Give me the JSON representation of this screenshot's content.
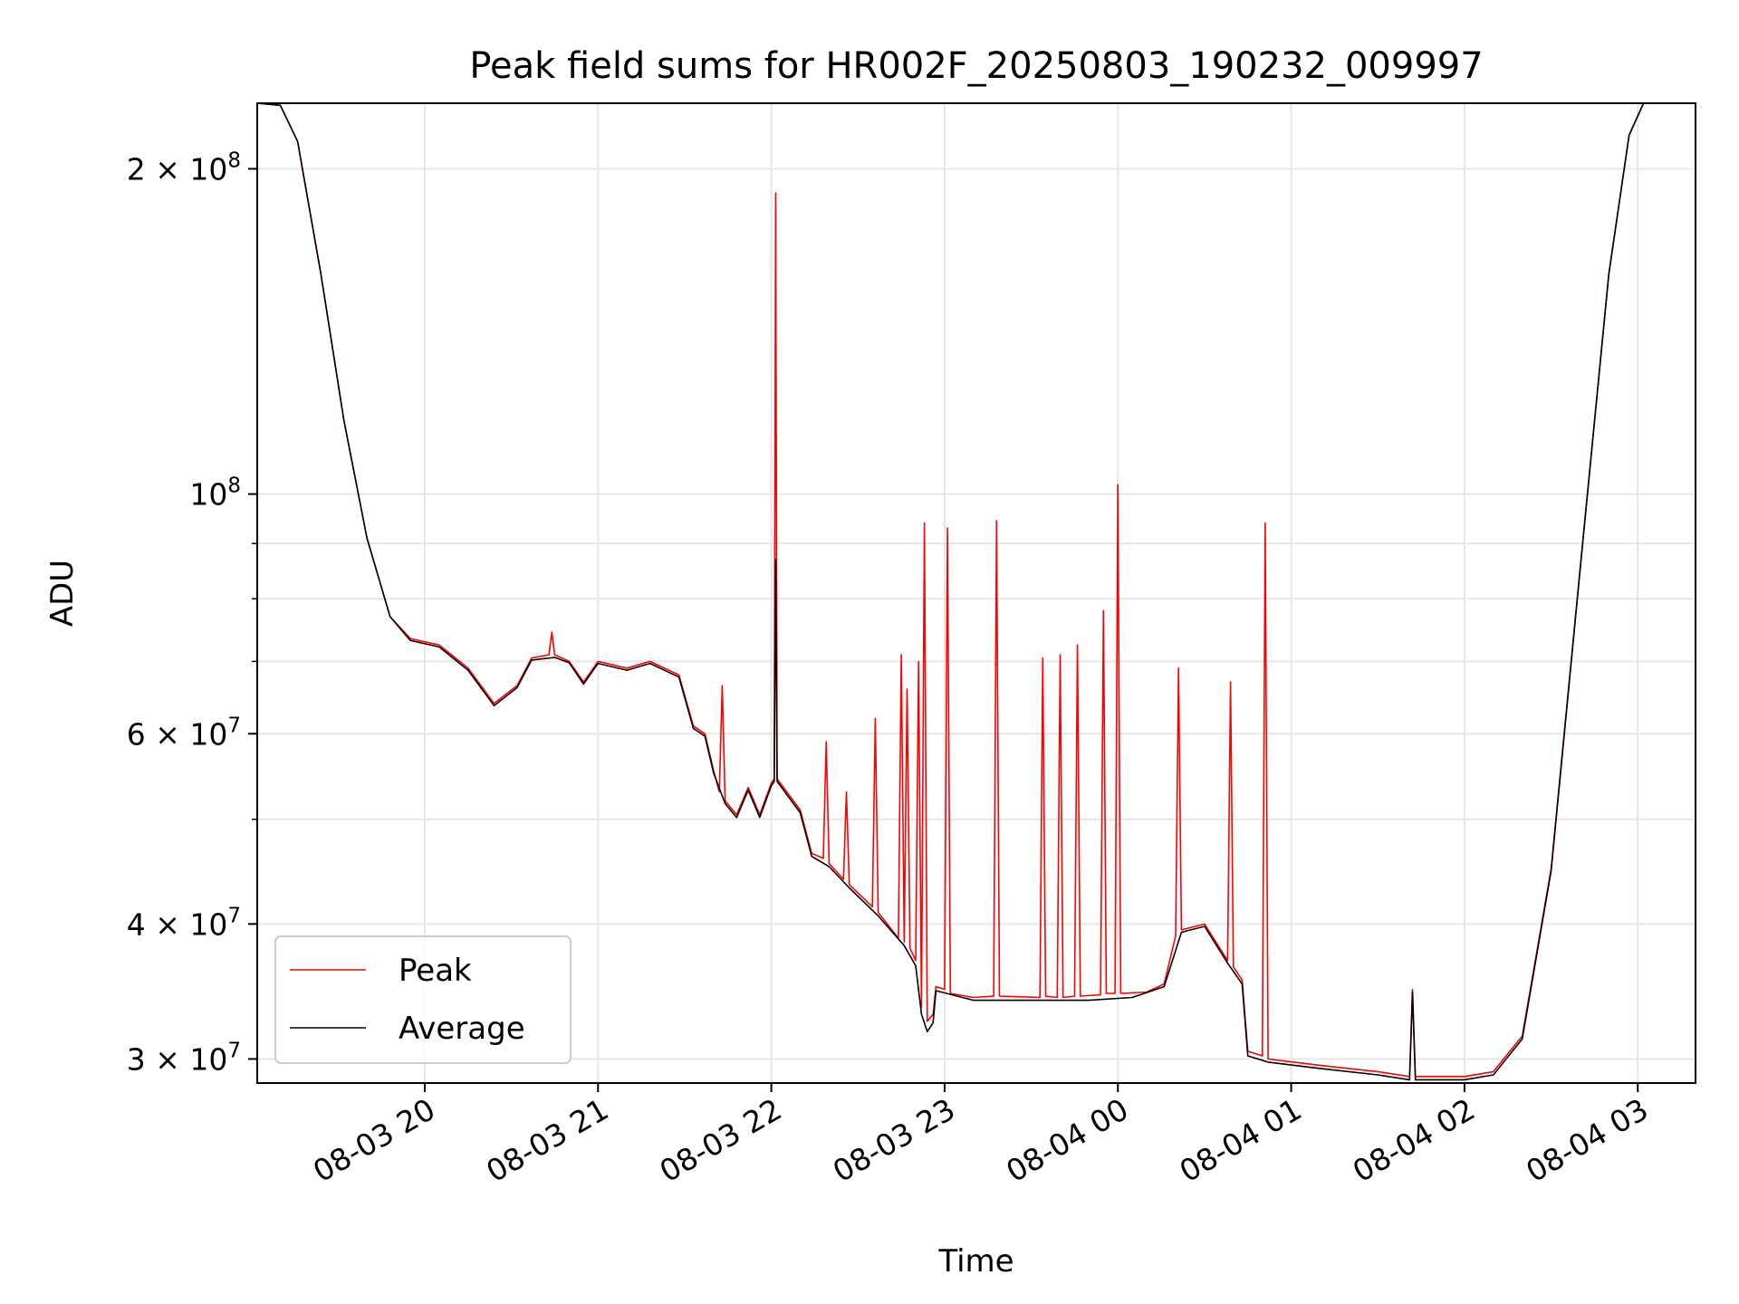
{
  "chart_data": {
    "type": "line",
    "title": "Peak field sums for HR002F_20250803_190232_009997",
    "xlabel": "Time",
    "ylabel": "ADU",
    "xscale": "time",
    "yscale": "log",
    "xlim": [
      "2025-08-03 19:02",
      "2025-08-04 03:20"
    ],
    "ylim": [
      28500000,
      230000000
    ],
    "grid": true,
    "legend_position": "lower-left",
    "x_ticks": [
      {
        "value": "2025-08-03 20:00",
        "label": "08-03 20"
      },
      {
        "value": "2025-08-03 21:00",
        "label": "08-03 21"
      },
      {
        "value": "2025-08-03 22:00",
        "label": "08-03 22"
      },
      {
        "value": "2025-08-03 23:00",
        "label": "08-03 23"
      },
      {
        "value": "2025-08-04 00:00",
        "label": "08-04 00"
      },
      {
        "value": "2025-08-04 01:00",
        "label": "08-04 01"
      },
      {
        "value": "2025-08-04 02:00",
        "label": "08-04 02"
      },
      {
        "value": "2025-08-04 03:00",
        "label": "08-04 03"
      }
    ],
    "y_ticks": [
      {
        "value": 30000000,
        "mantissa": "3",
        "exponent": "7"
      },
      {
        "value": 40000000,
        "mantissa": "4",
        "exponent": "7"
      },
      {
        "value": 60000000,
        "mantissa": "6",
        "exponent": "7"
      },
      {
        "value": 100000000,
        "mantissa": "",
        "exponent": "8"
      },
      {
        "value": 200000000,
        "mantissa": "2",
        "exponent": "8"
      }
    ],
    "y_minor_ticks": [
      50000000,
      70000000,
      80000000,
      90000000
    ],
    "series": [
      {
        "name": "Peak",
        "color": "#ff0000",
        "points": [
          [
            "2025-08-03 19:02",
            230000000
          ],
          [
            "2025-08-03 19:10",
            229000000
          ],
          [
            "2025-08-03 19:16",
            212000000
          ],
          [
            "2025-08-03 19:24",
            160000000
          ],
          [
            "2025-08-03 19:32",
            117000000
          ],
          [
            "2025-08-03 19:40",
            91000000
          ],
          [
            "2025-08-03 19:48",
            77000000
          ],
          [
            "2025-08-03 19:55",
            73500000
          ],
          [
            "2025-08-03 20:05",
            72500000
          ],
          [
            "2025-08-03 20:15",
            69000000
          ],
          [
            "2025-08-03 20:24",
            64000000
          ],
          [
            "2025-08-03 20:32",
            66500000
          ],
          [
            "2025-08-03 20:37",
            70500000
          ],
          [
            "2025-08-03 20:43",
            71000000
          ],
          [
            "2025-08-03 20:44",
            74500000
          ],
          [
            "2025-08-03 20:45",
            71000000
          ],
          [
            "2025-08-03 20:50",
            70000000
          ],
          [
            "2025-08-03 20:55",
            67000000
          ],
          [
            "2025-08-03 21:00",
            70000000
          ],
          [
            "2025-08-03 21:10",
            69000000
          ],
          [
            "2025-08-03 21:18",
            70000000
          ],
          [
            "2025-08-03 21:28",
            68000000
          ],
          [
            "2025-08-03 21:33",
            61000000
          ],
          [
            "2025-08-03 21:37",
            60000000
          ],
          [
            "2025-08-03 21:40",
            55500000
          ],
          [
            "2025-08-03 21:42",
            53000000
          ],
          [
            "2025-08-03 21:43",
            66500000
          ],
          [
            "2025-08-03 21:44",
            52000000
          ],
          [
            "2025-08-03 21:48",
            50500000
          ],
          [
            "2025-08-03 21:52",
            53500000
          ],
          [
            "2025-08-03 21:56",
            50500000
          ],
          [
            "2025-08-03 22:00",
            54000000
          ],
          [
            "2025-08-03 22:01",
            54500000
          ],
          [
            "2025-08-03 22:01:30",
            190000000
          ],
          [
            "2025-08-03 22:02",
            54500000
          ],
          [
            "2025-08-03 22:10",
            51000000
          ],
          [
            "2025-08-03 22:14",
            46500000
          ],
          [
            "2025-08-03 22:18",
            46000000
          ],
          [
            "2025-08-03 22:19",
            59000000
          ],
          [
            "2025-08-03 22:20",
            45500000
          ],
          [
            "2025-08-03 22:25",
            44000000
          ],
          [
            "2025-08-03 22:26",
            53000000
          ],
          [
            "2025-08-03 22:27",
            43500000
          ],
          [
            "2025-08-03 22:35",
            41500000
          ],
          [
            "2025-08-03 22:36",
            62000000
          ],
          [
            "2025-08-03 22:37",
            41000000
          ],
          [
            "2025-08-03 22:44",
            38800000
          ],
          [
            "2025-08-03 22:45",
            71000000
          ],
          [
            "2025-08-03 22:46",
            38500000
          ],
          [
            "2025-08-03 22:47",
            66000000
          ],
          [
            "2025-08-03 22:48",
            38000000
          ],
          [
            "2025-08-03 22:50",
            37000000
          ],
          [
            "2025-08-03 22:51",
            70000000
          ],
          [
            "2025-08-03 22:52",
            33500000
          ],
          [
            "2025-08-03 22:53",
            94000000
          ],
          [
            "2025-08-03 22:54",
            32500000
          ],
          [
            "2025-08-03 22:56",
            33000000
          ],
          [
            "2025-08-03 22:57",
            35000000
          ],
          [
            "2025-08-03 23:00",
            34800000
          ],
          [
            "2025-08-03 23:01",
            93000000
          ],
          [
            "2025-08-03 23:02",
            34500000
          ],
          [
            "2025-08-03 23:10",
            34200000
          ],
          [
            "2025-08-03 23:17",
            34300000
          ],
          [
            "2025-08-03 23:18",
            94500000
          ],
          [
            "2025-08-03 23:19",
            34300000
          ],
          [
            "2025-08-03 23:33",
            34200000
          ],
          [
            "2025-08-03 23:34",
            70500000
          ],
          [
            "2025-08-03 23:35",
            34300000
          ],
          [
            "2025-08-03 23:39",
            34200000
          ],
          [
            "2025-08-03 23:40",
            71000000
          ],
          [
            "2025-08-03 23:41",
            34200000
          ],
          [
            "2025-08-03 23:45",
            34300000
          ],
          [
            "2025-08-03 23:46",
            72500000
          ],
          [
            "2025-08-03 23:47",
            34300000
          ],
          [
            "2025-08-03 23:54",
            34400000
          ],
          [
            "2025-08-03 23:55",
            78000000
          ],
          [
            "2025-08-03 23:56",
            34500000
          ],
          [
            "2025-08-03 23:59",
            34500000
          ],
          [
            "2025-08-04 00:00",
            102000000
          ],
          [
            "2025-08-04 00:01",
            34500000
          ],
          [
            "2025-08-04 00:10",
            34600000
          ],
          [
            "2025-08-04 00:16",
            35200000
          ],
          [
            "2025-08-04 00:20",
            39000000
          ],
          [
            "2025-08-04 00:21",
            69000000
          ],
          [
            "2025-08-04 00:22",
            39500000
          ],
          [
            "2025-08-04 00:30",
            40000000
          ],
          [
            "2025-08-04 00:38",
            37000000
          ],
          [
            "2025-08-04 00:39",
            67000000
          ],
          [
            "2025-08-04 00:40",
            36500000
          ],
          [
            "2025-08-04 00:43",
            35500000
          ],
          [
            "2025-08-04 00:45",
            30500000
          ],
          [
            "2025-08-04 00:50",
            30200000
          ],
          [
            "2025-08-04 00:51",
            94000000
          ],
          [
            "2025-08-04 00:52",
            30000000
          ],
          [
            "2025-08-04 01:10",
            29600000
          ],
          [
            "2025-08-04 01:30",
            29200000
          ],
          [
            "2025-08-04 01:41",
            28900000
          ],
          [
            "2025-08-04 01:42",
            34800000
          ],
          [
            "2025-08-04 01:43",
            28900000
          ],
          [
            "2025-08-04 02:00",
            28900000
          ],
          [
            "2025-08-04 02:10",
            29200000
          ],
          [
            "2025-08-04 02:20",
            31500000
          ],
          [
            "2025-08-04 02:30",
            45000000
          ],
          [
            "2025-08-04 02:40",
            85000000
          ],
          [
            "2025-08-04 02:50",
            160000000
          ],
          [
            "2025-08-04 02:57",
            215000000
          ],
          [
            "2025-08-04 03:02",
            230000000
          ],
          [
            "2025-08-04 03:20",
            230000000
          ]
        ]
      },
      {
        "name": "Average",
        "color": "#000000",
        "points": [
          [
            "2025-08-03 19:02",
            230000000
          ],
          [
            "2025-08-03 19:10",
            229000000
          ],
          [
            "2025-08-03 19:16",
            212000000
          ],
          [
            "2025-08-03 19:24",
            160000000
          ],
          [
            "2025-08-03 19:32",
            117000000
          ],
          [
            "2025-08-03 19:40",
            91000000
          ],
          [
            "2025-08-03 19:48",
            77000000
          ],
          [
            "2025-08-03 19:55",
            73200000
          ],
          [
            "2025-08-03 20:05",
            72200000
          ],
          [
            "2025-08-03 20:15",
            68700000
          ],
          [
            "2025-08-03 20:24",
            63700000
          ],
          [
            "2025-08-03 20:32",
            66200000
          ],
          [
            "2025-08-03 20:37",
            70200000
          ],
          [
            "2025-08-03 20:45",
            70600000
          ],
          [
            "2025-08-03 20:50",
            69800000
          ],
          [
            "2025-08-03 20:55",
            66700000
          ],
          [
            "2025-08-03 21:00",
            69700000
          ],
          [
            "2025-08-03 21:10",
            68700000
          ],
          [
            "2025-08-03 21:18",
            69700000
          ],
          [
            "2025-08-03 21:28",
            67700000
          ],
          [
            "2025-08-03 21:33",
            60700000
          ],
          [
            "2025-08-03 21:37",
            59700000
          ],
          [
            "2025-08-03 21:40",
            55200000
          ],
          [
            "2025-08-03 21:44",
            51700000
          ],
          [
            "2025-08-03 21:48",
            50200000
          ],
          [
            "2025-08-03 21:52",
            53200000
          ],
          [
            "2025-08-03 21:56",
            50200000
          ],
          [
            "2025-08-03 22:00",
            53700000
          ],
          [
            "2025-08-03 22:01",
            54200000
          ],
          [
            "2025-08-03 22:01:30",
            87000000
          ],
          [
            "2025-08-03 22:02",
            54200000
          ],
          [
            "2025-08-03 22:10",
            50700000
          ],
          [
            "2025-08-03 22:14",
            46200000
          ],
          [
            "2025-08-03 22:20",
            45200000
          ],
          [
            "2025-08-03 22:27",
            43200000
          ],
          [
            "2025-08-03 22:37",
            40700000
          ],
          [
            "2025-08-03 22:46",
            38200000
          ],
          [
            "2025-08-03 22:50",
            36600000
          ],
          [
            "2025-08-03 22:52",
            33000000
          ],
          [
            "2025-08-03 22:54",
            31800000
          ],
          [
            "2025-08-03 22:56",
            32400000
          ],
          [
            "2025-08-03 22:57",
            34700000
          ],
          [
            "2025-08-03 23:10",
            34000000
          ],
          [
            "2025-08-03 23:30",
            34000000
          ],
          [
            "2025-08-03 23:50",
            34000000
          ],
          [
            "2025-08-04 00:05",
            34200000
          ],
          [
            "2025-08-04 00:16",
            35000000
          ],
          [
            "2025-08-04 00:22",
            39300000
          ],
          [
            "2025-08-04 00:30",
            39800000
          ],
          [
            "2025-08-04 00:38",
            36800000
          ],
          [
            "2025-08-04 00:43",
            35200000
          ],
          [
            "2025-08-04 00:45",
            30200000
          ],
          [
            "2025-08-04 00:52",
            29800000
          ],
          [
            "2025-08-04 01:10",
            29400000
          ],
          [
            "2025-08-04 01:30",
            29000000
          ],
          [
            "2025-08-04 01:41",
            28700000
          ],
          [
            "2025-08-04 01:42",
            34600000
          ],
          [
            "2025-08-04 01:43",
            28700000
          ],
          [
            "2025-08-04 02:00",
            28700000
          ],
          [
            "2025-08-04 02:10",
            29000000
          ],
          [
            "2025-08-04 02:20",
            31300000
          ],
          [
            "2025-08-04 02:30",
            44800000
          ],
          [
            "2025-08-04 02:40",
            84800000
          ],
          [
            "2025-08-04 02:50",
            159800000
          ],
          [
            "2025-08-04 02:57",
            214800000
          ],
          [
            "2025-08-04 03:02",
            230000000
          ],
          [
            "2025-08-04 03:20",
            230000000
          ]
        ]
      }
    ]
  }
}
